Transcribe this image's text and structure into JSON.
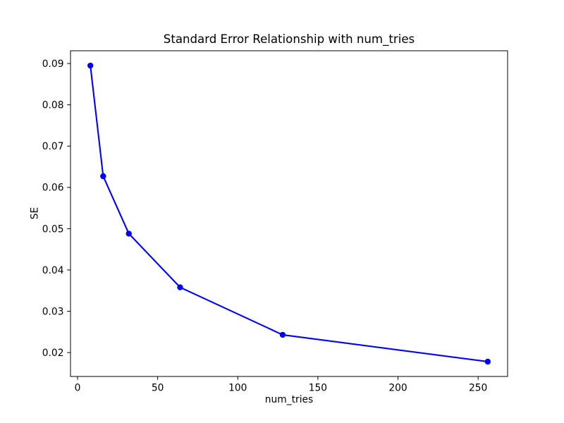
{
  "chart_data": {
    "type": "line",
    "title": "Standard Error Relationship with num_tries",
    "xlabel": "num_tries",
    "ylabel": "SE",
    "x": [
      8,
      16,
      32,
      64,
      128,
      256
    ],
    "y": [
      0.0895,
      0.0627,
      0.0488,
      0.0358,
      0.0243,
      0.0178
    ],
    "xlim": [
      -4.4,
      268.4
    ],
    "ylim": [
      0.01421,
      0.09309
    ],
    "xticks": [
      0,
      50,
      100,
      150,
      200,
      250
    ],
    "yticks": [
      0.02,
      0.03,
      0.04,
      0.05,
      0.06,
      0.07,
      0.08,
      0.09
    ],
    "y_tick_decimals": 2,
    "line_color": "#0000ff",
    "marker": "circle",
    "marker_color": "#0000ff",
    "axis_color": "#000000",
    "text_color": "#000000",
    "background": "#ffffff",
    "grid": false,
    "legend": "none"
  }
}
